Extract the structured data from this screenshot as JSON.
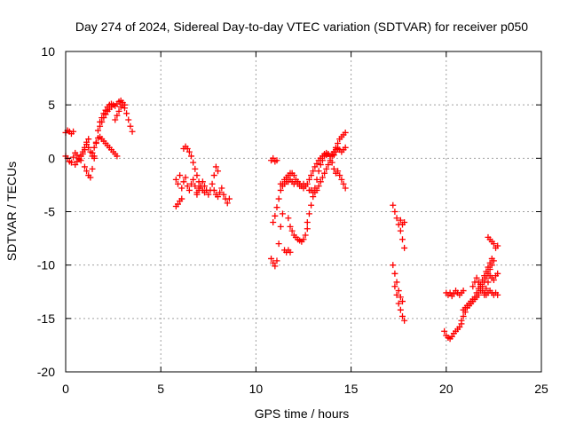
{
  "chart_data": {
    "type": "scatter",
    "title": "Day 274 of 2024, Sidereal Day-to-day VTEC variation (SDTVAR) for receiver p050",
    "xlabel": "GPS time / hours",
    "ylabel": "SDTVAR / TECUs",
    "xlim": [
      0,
      25
    ],
    "ylim": [
      -20,
      10
    ],
    "x_ticks": [
      "0",
      "5",
      "10",
      "15",
      "20",
      "25"
    ],
    "y_ticks": [
      "10",
      "5",
      "0",
      "-5",
      "-10",
      "-15",
      "-20"
    ],
    "grid": true,
    "marker": "plus",
    "color": "#ff0000",
    "series": [
      {
        "x": [
          0.0,
          0.1,
          0.2,
          0.3,
          0.4
        ],
        "y": [
          2.4,
          2.6,
          2.5,
          2.3,
          2.5
        ]
      },
      {
        "x": [
          0.0,
          0.1,
          0.2,
          0.3,
          0.4,
          0.5,
          0.6,
          0.7,
          0.8,
          0.9,
          1.0,
          1.1,
          1.2,
          1.3,
          1.4,
          1.5
        ],
        "y": [
          0.2,
          0.0,
          -0.3,
          -0.4,
          0.1,
          0.5,
          0.3,
          0.0,
          -0.2,
          0.4,
          0.8,
          1.3,
          1.0,
          0.6,
          0.2,
          0.0
        ]
      },
      {
        "x": [
          0.5,
          0.6,
          0.7,
          0.8,
          0.9,
          1.0,
          1.1,
          1.2
        ],
        "y": [
          -0.6,
          -0.3,
          -0.1,
          0.2,
          0.6,
          1.0,
          1.5,
          1.8
        ]
      },
      {
        "x": [
          1.0,
          1.1,
          1.2,
          1.3,
          1.4,
          1.5,
          1.6,
          1.7,
          1.8,
          1.9,
          2.0,
          2.1,
          2.2,
          2.3,
          2.4
        ],
        "y": [
          -0.8,
          -1.2,
          -1.6,
          -1.8,
          -1.0,
          0.2,
          1.4,
          2.6,
          3.4,
          3.8,
          4.2,
          4.5,
          4.8,
          5.0,
          5.1
        ]
      },
      {
        "x": [
          1.4,
          1.5,
          1.6,
          1.7,
          1.8,
          1.9,
          2.0,
          2.1,
          2.2,
          2.3,
          2.4,
          2.5,
          2.6,
          2.7
        ],
        "y": [
          0.5,
          1.0,
          1.5,
          1.9,
          2.0,
          1.8,
          1.6,
          1.4,
          1.2,
          1.0,
          0.8,
          0.6,
          0.4,
          0.2
        ]
      },
      {
        "x": [
          1.8,
          1.9,
          2.0,
          2.1,
          2.2,
          2.3,
          2.4,
          2.5,
          2.6,
          2.7,
          2.8,
          2.9,
          3.0,
          3.1
        ],
        "y": [
          3.0,
          3.4,
          3.8,
          4.1,
          4.4,
          4.6,
          4.8,
          5.0,
          4.9,
          5.1,
          5.3,
          5.4,
          5.2,
          5.0
        ]
      },
      {
        "x": [
          2.6,
          2.7,
          2.8,
          2.9,
          3.0,
          3.1,
          3.2,
          3.3,
          3.4,
          3.5
        ],
        "y": [
          3.6,
          4.0,
          4.4,
          4.8,
          5.0,
          4.7,
          4.2,
          3.6,
          3.0,
          2.5
        ]
      },
      {
        "x": [
          5.8,
          5.9,
          6.0,
          6.1
        ],
        "y": [
          -4.5,
          -4.3,
          -4.0,
          -3.8
        ]
      },
      {
        "x": [
          5.8,
          5.9,
          6.0,
          6.1,
          6.2,
          6.3,
          6.4,
          6.5,
          6.6,
          6.7,
          6.8,
          6.9,
          7.0
        ],
        "y": [
          -2.0,
          -2.4,
          -1.6,
          -2.8,
          -2.2,
          -1.8,
          -2.6,
          -3.0,
          -2.4,
          -2.0,
          -2.6,
          -3.2,
          -2.8
        ]
      },
      {
        "x": [
          6.2,
          6.3,
          6.4,
          6.5,
          6.6,
          6.7,
          6.8,
          6.9,
          7.0,
          7.1,
          7.2,
          7.3
        ],
        "y": [
          0.9,
          1.1,
          0.9,
          0.6,
          0.2,
          -0.4,
          -1.0,
          -1.6,
          -2.2,
          -2.6,
          -3.0,
          -3.2
        ]
      },
      {
        "x": [
          6.9,
          7.0,
          7.1,
          7.2,
          7.3,
          7.4,
          7.5,
          7.6,
          7.7,
          7.8,
          7.9,
          8.0
        ],
        "y": [
          -3.4,
          -3.0,
          -2.6,
          -2.2,
          -2.6,
          -3.0,
          -3.4,
          -3.0,
          -2.4,
          -1.6,
          -0.8,
          -1.2
        ]
      },
      {
        "x": [
          7.8,
          7.9,
          8.0,
          8.1,
          8.2,
          8.3,
          8.4,
          8.5,
          8.6
        ],
        "y": [
          -3.0,
          -3.4,
          -3.6,
          -3.2,
          -2.8,
          -3.4,
          -3.8,
          -4.2,
          -3.8
        ]
      },
      {
        "x": [
          10.8,
          10.9,
          11.0,
          11.1
        ],
        "y": [
          -0.2,
          0.0,
          -0.3,
          -0.2
        ]
      },
      {
        "x": [
          10.8,
          10.9,
          11.0,
          11.1,
          11.2,
          11.3,
          11.4
        ],
        "y": [
          -9.4,
          -9.8,
          -10.1,
          -9.6,
          -8.0,
          -6.4,
          -5.2
        ]
      },
      {
        "x": [
          10.9,
          11.0,
          11.1,
          11.2,
          11.3,
          11.4,
          11.5,
          11.6,
          11.7,
          11.8,
          11.9,
          12.0,
          12.1,
          12.2,
          12.3,
          12.4,
          12.5
        ],
        "y": [
          -6.0,
          -5.4,
          -4.6,
          -3.8,
          -3.0,
          -2.4,
          -2.0,
          -1.8,
          -1.6,
          -1.4,
          -1.4,
          -1.6,
          -2.0,
          -2.2,
          -2.6,
          -2.6,
          -2.8
        ]
      },
      {
        "x": [
          11.5,
          11.6,
          11.7,
          11.8
        ],
        "y": [
          -8.6,
          -8.8,
          -8.6,
          -8.8
        ]
      },
      {
        "x": [
          11.7,
          11.8,
          11.9,
          12.0,
          12.1,
          12.2,
          12.3,
          12.4,
          12.5,
          12.6,
          12.7
        ],
        "y": [
          -5.6,
          -6.4,
          -6.8,
          -7.2,
          -7.4,
          -7.6,
          -7.7,
          -7.8,
          -7.6,
          -7.2,
          -6.6
        ]
      },
      {
        "x": [
          11.3,
          11.4,
          11.5,
          11.6,
          11.7,
          11.8,
          11.9,
          12.0,
          12.1,
          12.2,
          12.3,
          12.4,
          12.5,
          12.6
        ],
        "y": [
          -2.4,
          -2.6,
          -2.4,
          -2.2,
          -2.2,
          -2.0,
          -2.2,
          -2.4,
          -2.2,
          -2.4,
          -2.4,
          -2.6,
          -2.4,
          -2.6
        ]
      },
      {
        "x": [
          12.7,
          12.8,
          12.9,
          13.0,
          13.1,
          13.2,
          13.3,
          13.4,
          13.5,
          13.6,
          13.7,
          13.8,
          13.9,
          14.0,
          14.1,
          14.2,
          14.3,
          14.4,
          14.5,
          14.6,
          14.7
        ],
        "y": [
          -6.0,
          -5.2,
          -4.4,
          -3.6,
          -2.8,
          -2.0,
          -1.2,
          -0.6,
          -0.2,
          0.2,
          0.3,
          0.4,
          0.2,
          -0.4,
          -1.0,
          -1.4,
          -1.2,
          -1.6,
          -2.0,
          -2.4,
          -2.8
        ]
      },
      {
        "x": [
          12.6,
          12.7,
          12.8,
          12.9,
          13.0,
          13.1,
          13.2,
          13.3,
          13.4,
          13.5,
          13.6,
          13.7,
          13.8,
          13.9,
          14.0,
          14.1,
          14.2
        ],
        "y": [
          -2.6,
          -2.4,
          -2.0,
          -1.6,
          -1.2,
          -0.8,
          -0.5,
          -0.2,
          0.0,
          0.2,
          0.4,
          0.5,
          0.4,
          0.2,
          0.4,
          0.6,
          0.8
        ]
      },
      {
        "x": [
          12.8,
          12.9,
          13.0,
          13.1,
          13.2,
          13.3,
          13.4,
          13.5,
          13.6,
          13.7,
          13.8,
          13.9,
          14.0,
          14.1,
          14.2,
          14.3,
          14.4,
          14.5,
          14.6,
          14.7
        ],
        "y": [
          -3.0,
          -3.0,
          -3.2,
          -3.2,
          -3.0,
          -2.6,
          -2.2,
          -1.8,
          -1.4,
          -1.0,
          -0.6,
          -0.2,
          0.2,
          0.6,
          1.0,
          1.4,
          1.8,
          2.0,
          2.2,
          2.4
        ]
      },
      {
        "x": [
          14.1,
          14.2,
          14.3,
          14.4,
          14.5,
          14.6,
          14.7
        ],
        "y": [
          0.3,
          0.6,
          0.9,
          0.8,
          0.6,
          0.8,
          1.0
        ]
      },
      {
        "x": [
          17.2,
          17.3,
          17.4,
          17.5,
          17.6,
          17.7,
          17.8
        ],
        "y": [
          -4.4,
          -5.0,
          -5.6,
          -6.2,
          -6.8,
          -7.6,
          -8.4
        ]
      },
      {
        "x": [
          17.6,
          17.7,
          17.8
        ],
        "y": [
          -5.8,
          -6.2,
          -6.0
        ]
      },
      {
        "x": [
          17.2,
          17.3,
          17.4,
          17.5,
          17.6,
          17.7
        ],
        "y": [
          -10.0,
          -10.8,
          -11.6,
          -12.4,
          -13.0,
          -13.4
        ]
      },
      {
        "x": [
          17.3,
          17.4,
          17.5,
          17.6,
          17.7,
          17.8
        ],
        "y": [
          -12.0,
          -12.8,
          -13.6,
          -14.2,
          -14.8,
          -15.2
        ]
      },
      {
        "x": [
          19.9,
          20.0,
          20.1,
          20.2,
          20.3,
          20.4,
          20.5,
          20.6,
          20.7,
          20.8
        ],
        "y": [
          -16.2,
          -16.6,
          -16.8,
          -16.9,
          -16.7,
          -16.4,
          -16.2,
          -16.0,
          -15.8,
          -15.5
        ]
      },
      {
        "x": [
          20.0,
          20.1,
          20.2,
          20.3,
          20.4,
          20.5,
          20.6,
          20.7,
          20.8,
          20.9
        ],
        "y": [
          -12.6,
          -12.8,
          -12.6,
          -12.9,
          -12.7,
          -12.4,
          -12.6,
          -12.8,
          -12.6,
          -12.4
        ]
      },
      {
        "x": [
          20.8,
          20.9,
          21.0,
          21.1,
          21.2,
          21.3,
          21.4,
          21.5,
          21.6,
          21.7,
          21.8,
          21.9,
          22.0,
          22.1,
          22.2,
          22.3,
          22.4
        ],
        "y": [
          -15.2,
          -14.8,
          -14.4,
          -14.0,
          -13.8,
          -13.6,
          -13.4,
          -13.0,
          -12.6,
          -12.2,
          -11.8,
          -11.4,
          -11.0,
          -10.6,
          -10.2,
          -9.8,
          -9.4
        ]
      },
      {
        "x": [
          20.9,
          21.0,
          21.1,
          21.2,
          21.3,
          21.4,
          21.5,
          21.6,
          21.7,
          21.8,
          21.9,
          22.0,
          22.1,
          22.2,
          22.3,
          22.4,
          22.5
        ],
        "y": [
          -14.2,
          -14.0,
          -13.8,
          -13.6,
          -13.4,
          -13.2,
          -13.2,
          -13.0,
          -12.8,
          -12.4,
          -12.0,
          -11.6,
          -11.2,
          -10.8,
          -10.4,
          -10.0,
          -9.6
        ]
      },
      {
        "x": [
          21.4,
          21.5,
          21.6,
          21.7,
          21.8,
          21.9,
          22.0,
          22.1,
          22.2,
          22.3,
          22.4,
          22.5,
          22.6,
          22.7
        ],
        "y": [
          -12.0,
          -11.6,
          -11.2,
          -11.6,
          -12.0,
          -12.4,
          -12.6,
          -12.8,
          -12.6,
          -12.4,
          -12.6,
          -12.8,
          -12.6,
          -12.8
        ]
      },
      {
        "x": [
          22.0,
          22.1,
          22.2,
          22.3,
          22.4,
          22.5,
          22.6,
          22.7
        ],
        "y": [
          -12.8,
          -12.2,
          -11.6,
          -11.0,
          -11.2,
          -11.4,
          -11.0,
          -10.8
        ]
      },
      {
        "x": [
          22.2,
          22.3,
          22.4
        ],
        "y": [
          -7.4,
          -7.6,
          -7.8
        ]
      },
      {
        "x": [
          22.5,
          22.6,
          22.7
        ],
        "y": [
          -8.0,
          -8.4,
          -8.2
        ]
      }
    ]
  }
}
